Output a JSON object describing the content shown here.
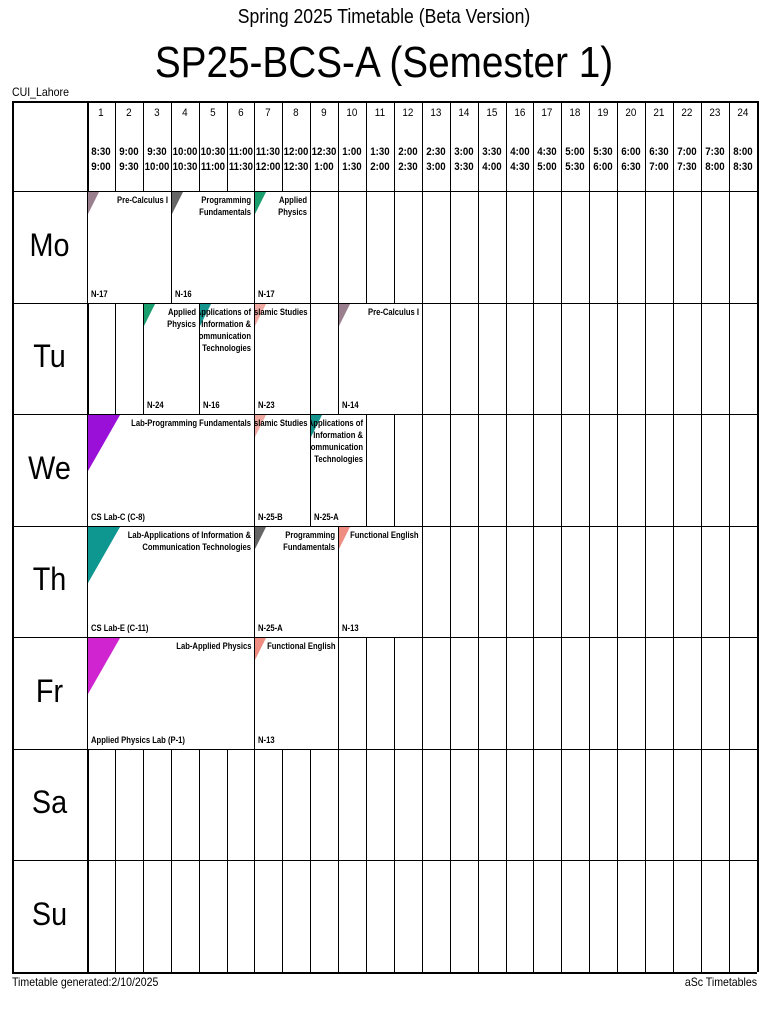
{
  "header": {
    "subtitle": "Spring 2025 Timetable (Beta Version)",
    "title": "SP25-BCS-A (Semester 1)",
    "school": "CUI_Lahore"
  },
  "periods": [
    {
      "num": "1",
      "start": "8:30",
      "end": "9:00"
    },
    {
      "num": "2",
      "start": "9:00",
      "end": "9:30"
    },
    {
      "num": "3",
      "start": "9:30",
      "end": "10:00"
    },
    {
      "num": "4",
      "start": "10:00",
      "end": "10:30"
    },
    {
      "num": "5",
      "start": "10:30",
      "end": "11:00"
    },
    {
      "num": "6",
      "start": "11:00",
      "end": "11:30"
    },
    {
      "num": "7",
      "start": "11:30",
      "end": "12:00"
    },
    {
      "num": "8",
      "start": "12:00",
      "end": "12:30"
    },
    {
      "num": "9",
      "start": "12:30",
      "end": "1:00"
    },
    {
      "num": "10",
      "start": "1:00",
      "end": "1:30"
    },
    {
      "num": "11",
      "start": "1:30",
      "end": "2:00"
    },
    {
      "num": "12",
      "start": "2:00",
      "end": "2:30"
    },
    {
      "num": "13",
      "start": "2:30",
      "end": "3:00"
    },
    {
      "num": "14",
      "start": "3:00",
      "end": "3:30"
    },
    {
      "num": "15",
      "start": "3:30",
      "end": "4:00"
    },
    {
      "num": "16",
      "start": "4:00",
      "end": "4:30"
    },
    {
      "num": "17",
      "start": "4:30",
      "end": "5:00"
    },
    {
      "num": "18",
      "start": "5:00",
      "end": "5:30"
    },
    {
      "num": "19",
      "start": "5:30",
      "end": "6:00"
    },
    {
      "num": "20",
      "start": "6:00",
      "end": "6:30"
    },
    {
      "num": "21",
      "start": "6:30",
      "end": "7:00"
    },
    {
      "num": "22",
      "start": "7:00",
      "end": "7:30"
    },
    {
      "num": "23",
      "start": "7:30",
      "end": "8:00"
    },
    {
      "num": "24",
      "start": "8:00",
      "end": "8:30"
    }
  ],
  "days": [
    "Mo",
    "Tu",
    "We",
    "Th",
    "Fr",
    "Sa",
    "Su"
  ],
  "lessons": [
    {
      "day": 0,
      "start": 1,
      "end": 3,
      "subject": [
        "Pre-Calculus I"
      ],
      "room": "N-17",
      "color": "#9a7f8e",
      "big": false
    },
    {
      "day": 0,
      "start": 4,
      "end": 6,
      "subject": [
        "Programming",
        "Fundamentals"
      ],
      "room": "N-16",
      "color": "#666666",
      "big": false
    },
    {
      "day": 0,
      "start": 7,
      "end": 8,
      "subject": [
        "Applied",
        "Physics"
      ],
      "room": "N-17",
      "color": "#1a9e6e",
      "big": false
    },
    {
      "day": 1,
      "start": 3,
      "end": 4,
      "subject": [
        "Applied",
        "Physics"
      ],
      "room": "N-24",
      "color": "#1a9e6e",
      "big": false
    },
    {
      "day": 1,
      "start": 5,
      "end": 6,
      "subject": [
        "Applications of",
        "Information &",
        "Communication",
        "Technologies"
      ],
      "room": "N-16",
      "color": "#14948c",
      "big": false
    },
    {
      "day": 1,
      "start": 7,
      "end": 8,
      "subject": [
        "Islamic Studies"
      ],
      "room": "N-23",
      "color": "#f0a9a0",
      "big": false
    },
    {
      "day": 1,
      "start": 10,
      "end": 12,
      "subject": [
        "Pre-Calculus I"
      ],
      "room": "N-14",
      "color": "#9a7f8e",
      "big": false
    },
    {
      "day": 2,
      "start": 1,
      "end": 6,
      "subject": [
        "Lab-Programming Fundamentals"
      ],
      "room": "CS Lab-C (C-8)",
      "color": "#9a10d8",
      "big": true
    },
    {
      "day": 2,
      "start": 7,
      "end": 8,
      "subject": [
        "Islamic Studies"
      ],
      "room": "N-25-B",
      "color": "#f0a9a0",
      "big": false
    },
    {
      "day": 2,
      "start": 9,
      "end": 10,
      "subject": [
        "Applications of",
        "Information &",
        "Communication",
        "Technologies"
      ],
      "room": "N-25-A",
      "color": "#14948c",
      "big": false
    },
    {
      "day": 3,
      "start": 1,
      "end": 6,
      "subject": [
        "Lab-Applications of Information &",
        "Communication Technologies"
      ],
      "room": "CS Lab-E (C-11)",
      "color": "#0e9690",
      "big": true
    },
    {
      "day": 3,
      "start": 7,
      "end": 9,
      "subject": [
        "Programming",
        "Fundamentals"
      ],
      "room": "N-25-A",
      "color": "#666666",
      "big": false
    },
    {
      "day": 3,
      "start": 10,
      "end": 12,
      "subject": [
        "Functional English"
      ],
      "room": "N-13",
      "color": "#ef8d82",
      "big": false
    },
    {
      "day": 4,
      "start": 1,
      "end": 6,
      "subject": [
        "Lab-Applied Physics"
      ],
      "room": "Applied Physics Lab (P-1)",
      "color": "#d024d0",
      "big": true
    },
    {
      "day": 4,
      "start": 7,
      "end": 9,
      "subject": [
        "Functional English"
      ],
      "room": "N-13",
      "color": "#ef8d82",
      "big": false
    }
  ],
  "footer": {
    "generated": "Timetable generated:2/10/2025",
    "brand": "aSc Timetables"
  }
}
